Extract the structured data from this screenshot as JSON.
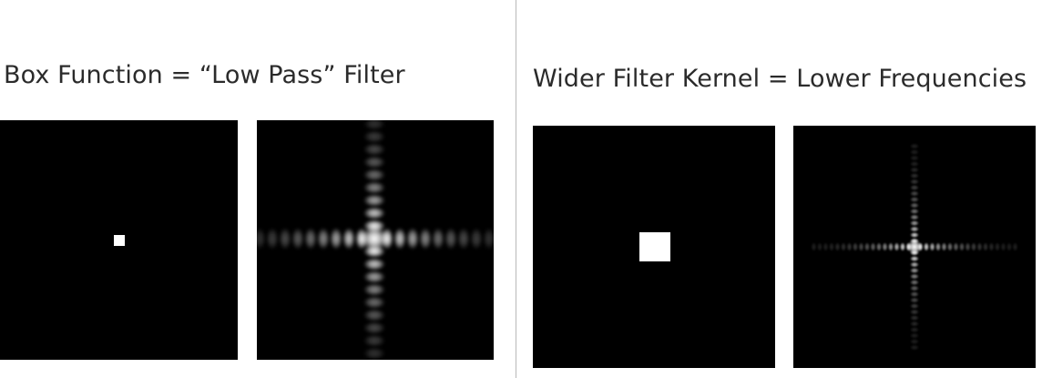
{
  "left_section": {
    "heading": "Box Function = “Low Pass” Filter"
  },
  "right_section": {
    "heading": "Wider Filter Kernel = Lower Frequencies"
  },
  "colors": {
    "background": "#ffffff",
    "image_background": "#000000",
    "kernel": "#ffffff",
    "divider": "#b9b9b9",
    "text": "#2b2b2b"
  }
}
